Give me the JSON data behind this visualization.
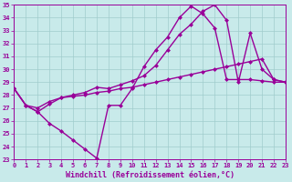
{
  "xlabel": "Windchill (Refroidissement éolien,°C)",
  "xlim": [
    0,
    23
  ],
  "ylim": [
    23,
    35
  ],
  "xticks": [
    0,
    1,
    2,
    3,
    4,
    5,
    6,
    7,
    8,
    9,
    10,
    11,
    12,
    13,
    14,
    15,
    16,
    17,
    18,
    19,
    20,
    21,
    22,
    23
  ],
  "yticks": [
    23,
    24,
    25,
    26,
    27,
    28,
    29,
    30,
    31,
    32,
    33,
    34,
    35
  ],
  "line_color": "#990099",
  "bg_color": "#c8eaea",
  "grid_color": "#a0cccc",
  "line1_x": [
    0,
    1,
    2,
    3,
    4,
    5,
    6,
    7,
    8,
    9,
    10,
    11,
    12,
    13,
    14,
    15,
    16,
    17,
    18,
    19,
    20,
    21,
    22,
    23
  ],
  "line1_y": [
    28.5,
    27.2,
    26.7,
    25.8,
    25.2,
    24.5,
    23.8,
    23.1,
    27.2,
    27.2,
    28.5,
    30.2,
    31.5,
    32.5,
    34.0,
    34.9,
    34.3,
    33.2,
    29.2,
    29.2,
    29.2,
    29.1,
    29.0,
    29.0
  ],
  "line2_x": [
    0,
    1,
    2,
    3,
    4,
    5,
    6,
    7,
    8,
    9,
    10,
    11,
    12,
    13,
    14,
    15,
    16,
    17,
    18,
    19,
    20,
    21,
    22,
    23
  ],
  "line2_y": [
    28.5,
    27.2,
    26.7,
    27.3,
    27.8,
    28.0,
    28.2,
    28.6,
    28.5,
    28.8,
    29.1,
    29.5,
    30.3,
    31.5,
    32.7,
    33.5,
    34.5,
    35.0,
    33.8,
    29.0,
    32.8,
    30.0,
    29.2,
    29.0
  ],
  "line3_x": [
    0,
    1,
    2,
    3,
    4,
    5,
    6,
    7,
    8,
    9,
    10,
    11,
    12,
    13,
    14,
    15,
    16,
    17,
    18,
    19,
    20,
    21,
    22,
    23
  ],
  "line3_y": [
    28.5,
    27.2,
    27.0,
    27.5,
    27.8,
    27.9,
    28.0,
    28.2,
    28.3,
    28.5,
    28.6,
    28.8,
    29.0,
    29.2,
    29.4,
    29.6,
    29.8,
    30.0,
    30.2,
    30.4,
    30.6,
    30.8,
    29.2,
    29.0
  ],
  "marker": "D",
  "markersize": 2.5,
  "linewidth": 1.0,
  "tick_fontsize": 5.0,
  "label_fontsize": 6.0
}
